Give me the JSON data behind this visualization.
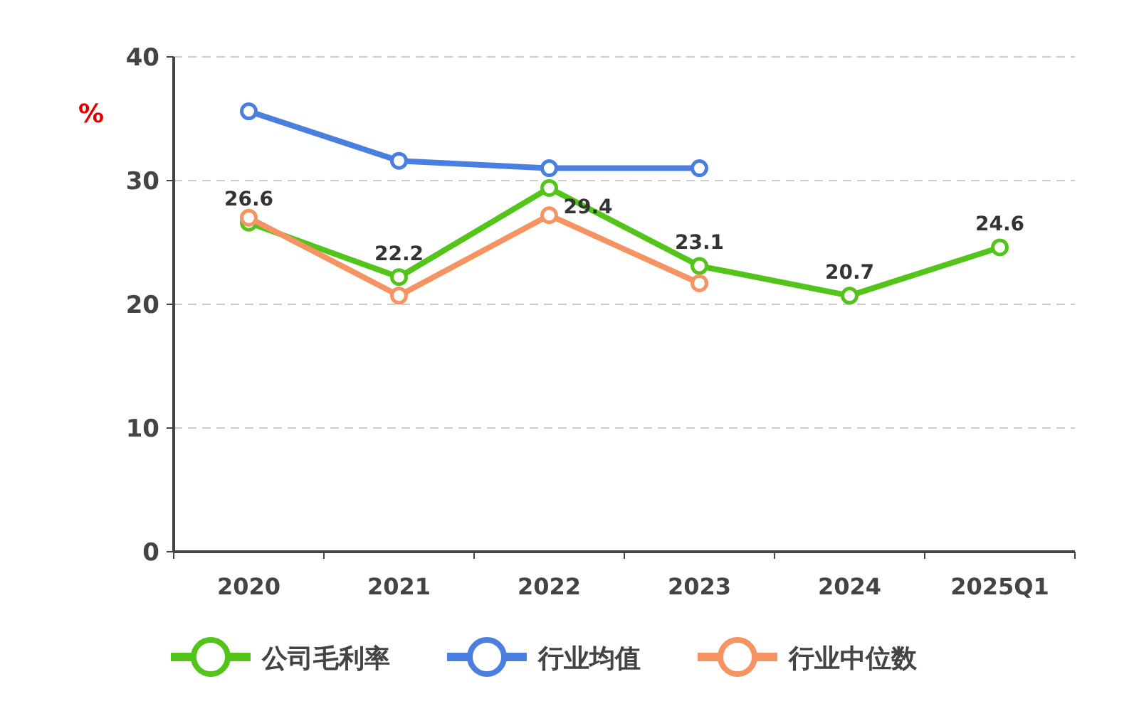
{
  "chart_data": {
    "type": "line",
    "ylabel": "%",
    "categories": [
      "2020",
      "2021",
      "2022",
      "2023",
      "2024",
      "2025Q1"
    ],
    "series": [
      {
        "name": "公司毛利率",
        "color": "#52c41a",
        "values": [
          26.6,
          22.2,
          29.4,
          23.1,
          20.7,
          24.6
        ],
        "value_labels": [
          "26.6",
          "22.2",
          "29.4",
          "23.1",
          "20.7",
          "24.6"
        ]
      },
      {
        "name": "行业均值",
        "color": "#4a7fe0",
        "values": [
          35.6,
          31.6,
          31.0,
          31.0,
          null,
          null
        ]
      },
      {
        "name": "行业中位数",
        "color": "#f59362",
        "values": [
          27.0,
          20.7,
          27.2,
          21.7,
          null,
          null
        ]
      }
    ],
    "ylim": [
      0,
      40
    ],
    "yticks": [
      0,
      10,
      20,
      30,
      40
    ],
    "grid": "y",
    "legend": "bottom",
    "marker": "circle",
    "line_style": "solid"
  }
}
